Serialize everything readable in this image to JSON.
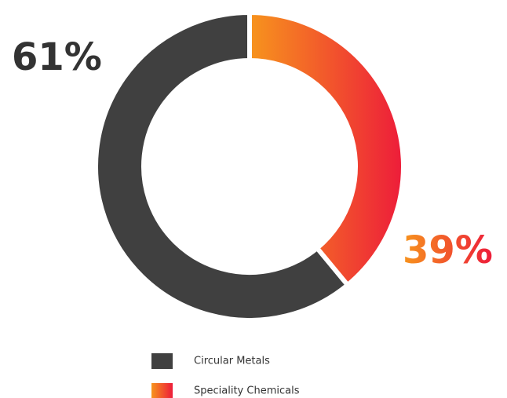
{
  "chart_data": {
    "type": "pie",
    "donut": true,
    "categories": [
      "Circular Metals",
      "Speciality Chemicals"
    ],
    "values": [
      61,
      39
    ],
    "value_labels": [
      "61%",
      "39%"
    ],
    "colors": [
      [
        "#404040"
      ],
      [
        "#f7941d",
        "#ed1c3a"
      ]
    ]
  }
}
